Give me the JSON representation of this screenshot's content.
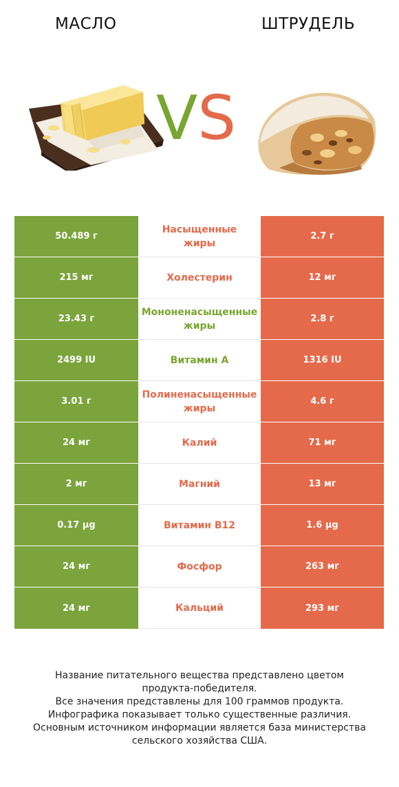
{
  "header": {
    "left_title": "МАСЛО",
    "right_title": "ШТРУДЕЛЬ",
    "vs_v": "V",
    "vs_s": "S"
  },
  "colors": {
    "left_accent": "#7ba43c",
    "right_accent": "#e46a4b"
  },
  "rows": [
    {
      "left": "50.489 г",
      "nutrient_line1": "Насыщенные",
      "nutrient_line2": "жиры",
      "right": "2.7 г",
      "winner": "right"
    },
    {
      "left": "215 мг",
      "nutrient_line1": "Холестерин",
      "nutrient_line2": "",
      "right": "12 мг",
      "winner": "right"
    },
    {
      "left": "23.43 г",
      "nutrient_line1": "Мононенасыщенные",
      "nutrient_line2": "жиры",
      "right": "2.8 г",
      "winner": "left"
    },
    {
      "left": "2499 IU",
      "nutrient_line1": "Витамин A",
      "nutrient_line2": "",
      "right": "1316 IU",
      "winner": "left"
    },
    {
      "left": "3.01 г",
      "nutrient_line1": "Полиненасыщенные",
      "nutrient_line2": "жиры",
      "right": "4.6 г",
      "winner": "right"
    },
    {
      "left": "24 мг",
      "nutrient_line1": "Калий",
      "nutrient_line2": "",
      "right": "71 мг",
      "winner": "right"
    },
    {
      "left": "2 мг",
      "nutrient_line1": "Магний",
      "nutrient_line2": "",
      "right": "13 мг",
      "winner": "right"
    },
    {
      "left": "0.17 µg",
      "nutrient_line1": "Витамин B12",
      "nutrient_line2": "",
      "right": "1.6 µg",
      "winner": "right"
    },
    {
      "left": "24 мг",
      "nutrient_line1": "Фосфор",
      "nutrient_line2": "",
      "right": "263 мг",
      "winner": "right"
    },
    {
      "left": "24 мг",
      "nutrient_line1": "Кальций",
      "nutrient_line2": "",
      "right": "293 мг",
      "winner": "right"
    }
  ],
  "footer": {
    "line1": "Название питательного вещества представлено цветом",
    "line2": "продукта-победителя.",
    "line3": "Все значения представлены для 100 граммов продукта.",
    "line4": "Инфографика показывает только существенные различия.",
    "line5": "Основным источником информации является база министерства",
    "line6": "сельского хозяйства США."
  }
}
